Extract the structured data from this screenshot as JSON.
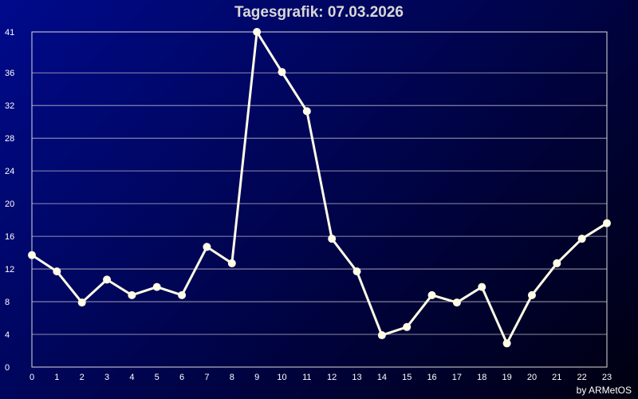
{
  "title": "Tagesgrafik: 07.03.2026",
  "credit": "by ARMetOS",
  "colors": {
    "line": "#fffde6",
    "grid": "#b8b8c8",
    "frame": "#dcdcdc"
  },
  "chart_data": {
    "type": "line",
    "title": "Tagesgrafik: 07.03.2026",
    "xlabel": "",
    "ylabel": "",
    "xlim": [
      0,
      23
    ],
    "ylim": [
      0,
      41
    ],
    "grid": true,
    "x": [
      0,
      1,
      2,
      3,
      4,
      5,
      6,
      7,
      8,
      9,
      10,
      11,
      12,
      13,
      14,
      15,
      16,
      17,
      18,
      19,
      20,
      21,
      22,
      23
    ],
    "series": [
      {
        "values": [
          13.7,
          11.7,
          7.9,
          10.7,
          8.8,
          9.8,
          8.8,
          14.7,
          12.7,
          41,
          36.1,
          31.3,
          15.7,
          11.7,
          3.9,
          4.9,
          8.8,
          7.9,
          9.8,
          2.9,
          8.8,
          12.7,
          15.7,
          17.6
        ]
      }
    ],
    "y_ticks": [
      0,
      4,
      8,
      12,
      16,
      20,
      24,
      28,
      32,
      36,
      41
    ],
    "x_ticks": [
      0,
      1,
      2,
      3,
      4,
      5,
      6,
      7,
      8,
      9,
      10,
      11,
      12,
      13,
      14,
      15,
      16,
      17,
      18,
      19,
      20,
      21,
      22,
      23
    ]
  }
}
